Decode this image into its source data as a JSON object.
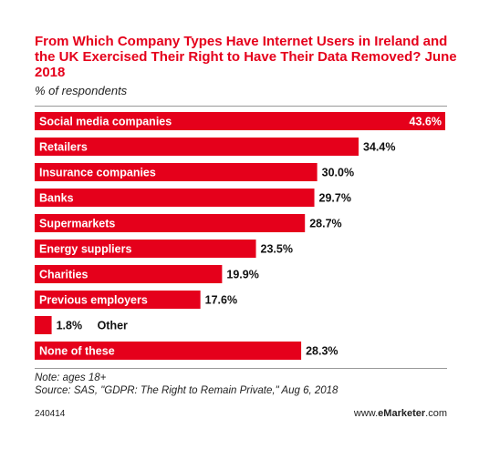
{
  "header": {
    "title": "From Which Company Types Have Internet Users in Ireland and the UK Exercised Their Right to Have Their Data Removed? June 2018",
    "subtitle": "% of respondents"
  },
  "chart_data": {
    "type": "bar",
    "orientation": "horizontal",
    "title": "From Which Company Types Have Internet Users in Ireland and the UK Exercised Their Right to Have Their Data Removed? June 2018",
    "subtitle": "% of respondents",
    "bar_color": "#e5001b",
    "categories": [
      "Social media companies",
      "Retailers",
      "Insurance companies",
      "Banks",
      "Supermarkets",
      "Energy suppliers",
      "Charities",
      "Previous employers",
      "Other",
      "None of these"
    ],
    "values": [
      43.6,
      34.4,
      30.0,
      29.7,
      28.7,
      23.5,
      19.9,
      17.6,
      1.8,
      28.3
    ],
    "value_labels": [
      "43.6%",
      "34.4%",
      "30.0%",
      "29.7%",
      "28.7%",
      "23.5%",
      "19.9%",
      "17.6%",
      "1.8%",
      "28.3%"
    ],
    "xlim": [
      0,
      43.6
    ]
  },
  "footer": {
    "note": "Note: ages 18+",
    "source": "Source: SAS, \"GDPR: The Right to Remain Private,\" Aug 6, 2018",
    "chart_id": "240414",
    "brand_prefix": "www.",
    "brand_name": "eMarketer",
    "brand_suffix": ".com"
  }
}
